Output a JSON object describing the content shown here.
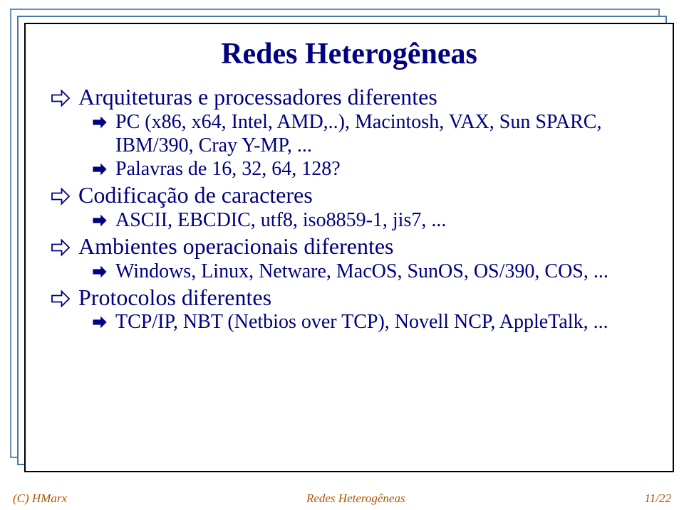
{
  "title": {
    "text": "Redes Heterogêneas",
    "color": "#000080",
    "fontsize": 42
  },
  "body": {
    "color": "#000080",
    "lvl1_fontsize": 32,
    "lvl2_fontsize": 28,
    "arrow_outline_color": "#000080",
    "arrow_outline_fill": "#ffffff",
    "arrow_outline_size": 30,
    "arrow_solid_color": "#000080",
    "arrow_solid_size": 24
  },
  "items": {
    "i1": "Arquiteturas e processadores diferentes",
    "i1a": "PC (x86, x64, Intel, AMD,..), Macintosh, VAX, Sun SPARC, IBM/390, Cray Y-MP, ...",
    "i1b": "Palavras de 16, 32, 64, 128?",
    "i2": "Codificação de caracteres",
    "i2a": "ASCII, EBCDIC, utf8, iso8859-1, jis7, ...",
    "i3": "Ambientes operacionais diferentes",
    "i3a": "Windows, Linux,  Netware, MacOS, SunOS, OS/390, COS, ...",
    "i4": "Protocolos diferentes",
    "i4a": "TCP/IP, NBT (Netbios over TCP), Novell NCP, AppleTalk, ..."
  },
  "footer": {
    "left": "(C) HMarx",
    "center": "Redes Heterogêneas",
    "right": "11/22",
    "color": "#aa5500",
    "fontsize": 17
  },
  "layout": {
    "stack1_border": "#6a8fb5",
    "stack2_border": "#4a77a8",
    "slide_border": "#000000",
    "background": "#ffffff"
  }
}
